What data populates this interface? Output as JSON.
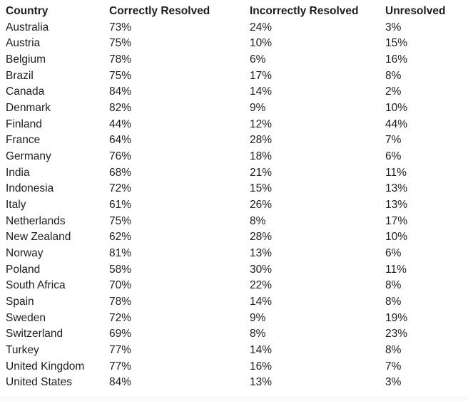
{
  "table": {
    "columns": [
      "Country",
      "Correctly Resolved",
      "Incorrectly Resolved",
      "Unresolved"
    ],
    "rows": [
      [
        "Australia",
        "73%",
        "24%",
        "3%"
      ],
      [
        "Austria",
        "75%",
        "10%",
        "15%"
      ],
      [
        "Belgium",
        "78%",
        "6%",
        "16%"
      ],
      [
        "Brazil",
        "75%",
        "17%",
        "8%"
      ],
      [
        "Canada",
        "84%",
        "14%",
        "2%"
      ],
      [
        "Denmark",
        "82%",
        "9%",
        "10%"
      ],
      [
        "Finland",
        "44%",
        "12%",
        "44%"
      ],
      [
        "France",
        "64%",
        "28%",
        "7%"
      ],
      [
        "Germany",
        "76%",
        "18%",
        "6%"
      ],
      [
        "India",
        "68%",
        "21%",
        "11%"
      ],
      [
        "Indonesia",
        "72%",
        "15%",
        "13%"
      ],
      [
        "Italy",
        "61%",
        "26%",
        "13%"
      ],
      [
        "Netherlands",
        "75%",
        "8%",
        "17%"
      ],
      [
        "New Zealand",
        "62%",
        "28%",
        "10%"
      ],
      [
        "Norway",
        "81%",
        "13%",
        "6%"
      ],
      [
        "Poland",
        "58%",
        "30%",
        "11%"
      ],
      [
        "South Africa",
        "70%",
        "22%",
        "8%"
      ],
      [
        "Spain",
        "78%",
        "14%",
        "8%"
      ],
      [
        "Sweden",
        "72%",
        "9%",
        "19%"
      ],
      [
        "Switzerland",
        "69%",
        "8%",
        "23%"
      ],
      [
        "Turkey",
        "77%",
        "14%",
        "8%"
      ],
      [
        "United Kingdom",
        "77%",
        "16%",
        "7%"
      ],
      [
        "United States",
        "84%",
        "13%",
        "3%"
      ]
    ]
  },
  "chart_data": {
    "type": "table",
    "title": "",
    "columns": [
      "Country",
      "Correctly Resolved",
      "Incorrectly Resolved",
      "Unresolved"
    ],
    "categories": [
      "Australia",
      "Austria",
      "Belgium",
      "Brazil",
      "Canada",
      "Denmark",
      "Finland",
      "France",
      "Germany",
      "India",
      "Indonesia",
      "Italy",
      "Netherlands",
      "New Zealand",
      "Norway",
      "Poland",
      "South Africa",
      "Spain",
      "Sweden",
      "Switzerland",
      "Turkey",
      "United Kingdom",
      "United States"
    ],
    "series": [
      {
        "name": "Correctly Resolved",
        "unit": "%",
        "values": [
          73,
          75,
          78,
          75,
          84,
          82,
          44,
          64,
          76,
          68,
          72,
          61,
          75,
          62,
          81,
          58,
          70,
          78,
          72,
          69,
          77,
          77,
          84
        ]
      },
      {
        "name": "Incorrectly Resolved",
        "unit": "%",
        "values": [
          24,
          10,
          6,
          17,
          14,
          9,
          12,
          28,
          18,
          21,
          15,
          26,
          8,
          28,
          13,
          30,
          22,
          14,
          9,
          8,
          14,
          16,
          13
        ]
      },
      {
        "name": "Unresolved",
        "unit": "%",
        "values": [
          3,
          15,
          16,
          8,
          2,
          10,
          44,
          7,
          6,
          11,
          13,
          13,
          17,
          10,
          6,
          11,
          8,
          8,
          19,
          23,
          8,
          7,
          3
        ]
      }
    ]
  },
  "colors": {
    "text": "#1d1d1d",
    "background": "#ffffff",
    "footer_bar": "#fafafa"
  }
}
